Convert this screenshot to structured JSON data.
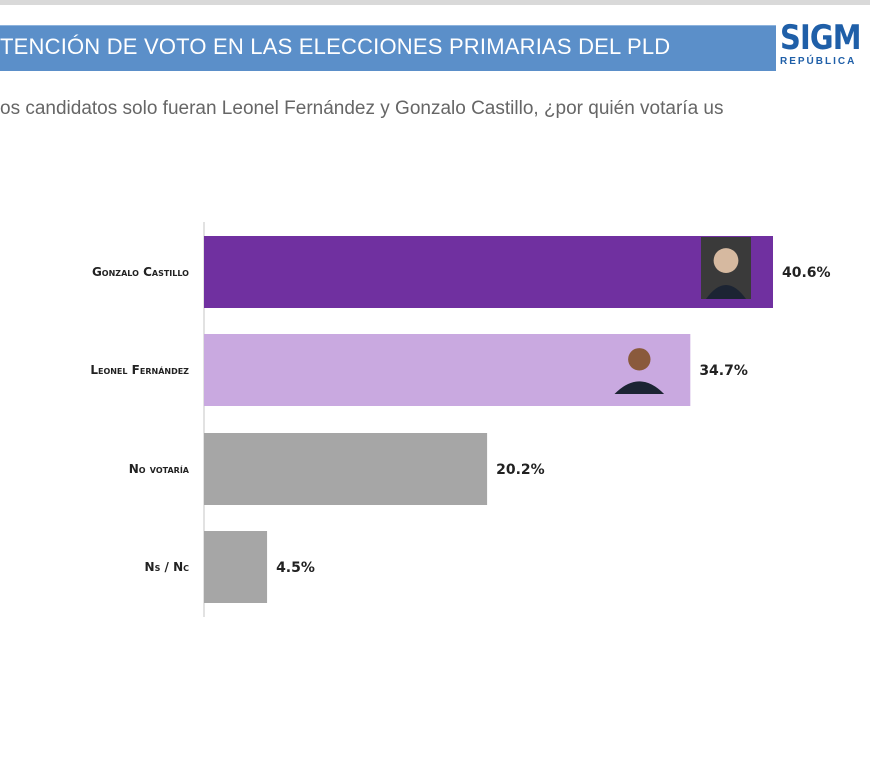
{
  "header": {
    "title": "TENCIÓN DE VOTO EN LAS ELECCIONES PRIMARIAS DEL PLD",
    "logo_text": "SIGM",
    "logo_sub": "REPÚBLICA"
  },
  "subtitle": "os candidatos solo fueran Leonel Fernández y Gonzalo Castillo, ¿por quién votaría us",
  "chart_data": {
    "type": "bar",
    "orientation": "horizontal",
    "title": "",
    "categories": [
      "Gonzalo Castillo",
      "Leonel Fernández",
      "No votaría",
      "Ns / Nc"
    ],
    "values": [
      40.6,
      34.7,
      20.2,
      4.5
    ],
    "labels": [
      "40.6%",
      "34.7%",
      "20.2%",
      "4.5%"
    ],
    "colors": [
      "#7030a0",
      "#c9a9e0",
      "#a6a6a6",
      "#a6a6a6"
    ],
    "photos": [
      "candidate-photo",
      "candidate-photo",
      null,
      null
    ],
    "xlim": [
      0,
      40.6
    ],
    "grid": false
  }
}
